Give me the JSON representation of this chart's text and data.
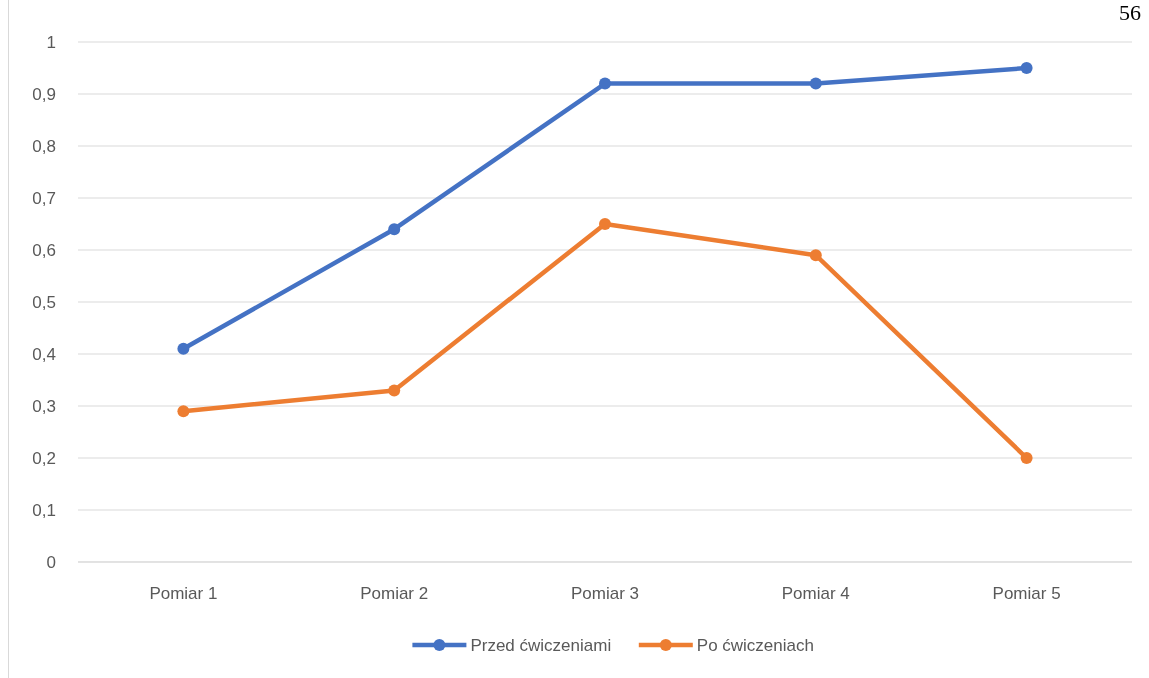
{
  "chart_data": {
    "type": "line",
    "categories": [
      "Pomiar 1",
      "Pomiar 2",
      "Pomiar 3",
      "Pomiar 4",
      "Pomiar 5"
    ],
    "series": [
      {
        "name": "Przed ćwiczeniami",
        "color": "#4472c4",
        "values": [
          0.41,
          0.64,
          0.92,
          0.92,
          0.95
        ]
      },
      {
        "name": "Po ćwiczeniach",
        "color": "#ed7d31",
        "values": [
          0.29,
          0.33,
          0.65,
          0.59,
          0.2
        ]
      }
    ],
    "ylim": [
      0,
      1
    ],
    "yticks": [
      0,
      {
        "value": 0.1,
        "label": "0,1"
      },
      {
        "value": 0.2,
        "label": "0,2"
      },
      {
        "value": 0.3,
        "label": "0,3"
      },
      {
        "value": 0.4,
        "label": "0,4"
      },
      {
        "value": 0.5,
        "label": "0,5"
      },
      {
        "value": 0.6,
        "label": "0,6"
      },
      {
        "value": 0.7,
        "label": "0,7"
      },
      {
        "value": 0.8,
        "label": "0,8"
      },
      {
        "value": 0.9,
        "label": "0,9"
      },
      1
    ],
    "grid": "y",
    "legend": "bottom",
    "marker": "circle",
    "line_style": "solid",
    "annotations": [
      "56"
    ]
  }
}
